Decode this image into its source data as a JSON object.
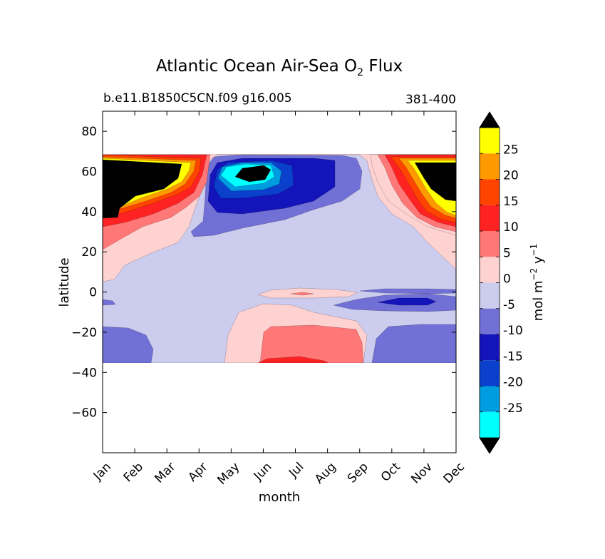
{
  "chart_data": {
    "type": "heatmap",
    "title": "Atlantic Ocean Air-Sea O",
    "title_sub": "2",
    "title_tail": "Flux",
    "subtitle_left": "b.e11.B1850C5CN.f09 g16.005",
    "subtitle_right": "381-400",
    "xlabel": "month",
    "ylabel": "latitude",
    "x_categories": [
      "Jan",
      "Feb",
      "Mar",
      "Apr",
      "May",
      "Jun",
      "Jul",
      "Aug",
      "Sep",
      "Oct",
      "Nov",
      "Dec"
    ],
    "yticks": [
      "80",
      "60",
      "40",
      "20",
      "0",
      "−20",
      "−40",
      "−60"
    ],
    "ylim": [
      -80,
      90
    ],
    "data_extent_lat": [
      -34,
      69
    ],
    "colorbar": {
      "label_main": "mol m",
      "label_exp1": "−2",
      "label_mid": " y",
      "label_exp2": "−1",
      "ticks": [
        "25",
        "20",
        "15",
        "10",
        "5",
        "0",
        "-5",
        "-10",
        "-15",
        "-20",
        "-25"
      ],
      "bins_top_to_bottom": [
        {
          "range": "25 to 30",
          "color": "#ffff00"
        },
        {
          "range": "20 to 25",
          "color": "#ff9900"
        },
        {
          "range": "15 to 20",
          "color": "#ff4400"
        },
        {
          "range": "10 to 15",
          "color": "#ff2222"
        },
        {
          "range": "5 to 10",
          "color": "#ff7777"
        },
        {
          "range": "0 to 5",
          "color": "#ffd2d2"
        },
        {
          "range": "-5 to 0",
          "color": "#ccccee"
        },
        {
          "range": "-10 to -5",
          "color": "#7070d6"
        },
        {
          "range": "-15 to -10",
          "color": "#1414bb"
        },
        {
          "range": "-20 to -15",
          "color": "#0a40cc"
        },
        {
          "range": "-25 to -20",
          "color": "#009ce0"
        },
        {
          "range": "-30 to -25",
          "color": "#00ffff"
        }
      ],
      "over_color": "#000000",
      "under_color": "#000000"
    }
  }
}
